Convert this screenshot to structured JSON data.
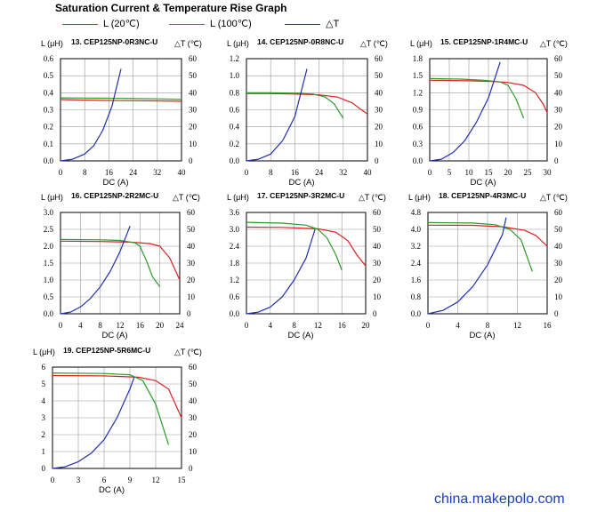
{
  "page_title": "Saturation Current & Temperature Rise  Graph",
  "legend": [
    {
      "label": "L (20℃)",
      "color": "#e02020"
    },
    {
      "label": "L (100℃)",
      "color": "#2a9a2a"
    },
    {
      "label": "△T",
      "color": "#2030b0"
    }
  ],
  "watermark": "china.makepolo.com",
  "chart_data": [
    {
      "type": "line",
      "title": "13. CEP125NP-0R3NC-U",
      "xlabel": "DC (A)",
      "ylabel_left": "L (μH)",
      "ylabel_right": "△T (℃)",
      "xlim": [
        0,
        40
      ],
      "xticks": [
        0,
        8,
        16,
        24,
        32,
        40
      ],
      "ylim_left": [
        0,
        0.6
      ],
      "yticks_left": [
        "0.0",
        "0.1",
        "0.2",
        "0.3",
        "0.4",
        "0.5",
        "0.6"
      ],
      "ylim_right": [
        0,
        60
      ],
      "yticks_right": [
        0,
        10,
        20,
        30,
        40,
        50,
        60
      ],
      "grid": true,
      "series": [
        {
          "name": "L (20℃)",
          "axis": "left",
          "points": [
            [
              0,
              0.36
            ],
            [
              8,
              0.357
            ],
            [
              16,
              0.355
            ],
            [
              24,
              0.353
            ],
            [
              32,
              0.352
            ],
            [
              40,
              0.35
            ]
          ]
        },
        {
          "name": "L (100℃)",
          "axis": "left",
          "points": [
            [
              0,
              0.37
            ],
            [
              8,
              0.369
            ],
            [
              16,
              0.368
            ],
            [
              24,
              0.366
            ],
            [
              32,
              0.364
            ],
            [
              40,
              0.361
            ]
          ]
        },
        {
          "name": "△T",
          "axis": "right",
          "points": [
            [
              0,
              0
            ],
            [
              4,
              1
            ],
            [
              8,
              4
            ],
            [
              11,
              9
            ],
            [
              14,
              18
            ],
            [
              17,
              32
            ],
            [
              20,
              54
            ]
          ]
        }
      ]
    },
    {
      "type": "line",
      "title": "14. CEP125NP-0R8NC-U",
      "xlabel": "DC (A)",
      "ylabel_left": "L (μH)",
      "ylabel_right": "△T (℃)",
      "xlim": [
        0,
        40
      ],
      "xticks": [
        0,
        8,
        16,
        24,
        32,
        40
      ],
      "ylim_left": [
        0,
        1.2
      ],
      "yticks_left": [
        "0.0",
        "0.2",
        "0.4",
        "0.6",
        "0.8",
        "1.0",
        "1.2"
      ],
      "ylim_right": [
        0,
        60
      ],
      "yticks_right": [
        0,
        10,
        20,
        30,
        40,
        50,
        60
      ],
      "grid": true,
      "series": [
        {
          "name": "L (20℃)",
          "axis": "left",
          "points": [
            [
              0,
              0.79
            ],
            [
              8,
              0.79
            ],
            [
              16,
              0.785
            ],
            [
              24,
              0.775
            ],
            [
              30,
              0.75
            ],
            [
              35,
              0.68
            ],
            [
              38,
              0.6
            ],
            [
              40,
              0.55
            ]
          ]
        },
        {
          "name": "L (100℃)",
          "axis": "left",
          "points": [
            [
              0,
              0.8
            ],
            [
              8,
              0.8
            ],
            [
              16,
              0.795
            ],
            [
              22,
              0.785
            ],
            [
              26,
              0.75
            ],
            [
              29,
              0.67
            ],
            [
              32,
              0.5
            ]
          ]
        },
        {
          "name": "△T",
          "axis": "right",
          "points": [
            [
              0,
              0
            ],
            [
              4,
              1
            ],
            [
              8,
              4
            ],
            [
              12,
              12
            ],
            [
              16,
              26
            ],
            [
              20,
              54
            ]
          ]
        }
      ]
    },
    {
      "type": "line",
      "title": "15. CEP125NP-1R4MC-U",
      "xlabel": "DC (A)",
      "ylabel_left": "L (μH)",
      "ylabel_right": "△T (℃)",
      "xlim": [
        0,
        30
      ],
      "xticks": [
        0,
        5,
        10,
        15,
        20,
        25,
        30
      ],
      "ylim_left": [
        0,
        1.8
      ],
      "yticks_left": [
        "0.0",
        "0.3",
        "0.6",
        "0.9",
        "1.2",
        "1.5",
        "1.8"
      ],
      "ylim_right": [
        0,
        60
      ],
      "yticks_right": [
        0,
        10,
        20,
        30,
        40,
        50,
        60
      ],
      "grid": true,
      "series": [
        {
          "name": "L (20℃)",
          "axis": "left",
          "points": [
            [
              0,
              1.42
            ],
            [
              10,
              1.41
            ],
            [
              16,
              1.4
            ],
            [
              20,
              1.38
            ],
            [
              24,
              1.33
            ],
            [
              27,
              1.2
            ],
            [
              29,
              1.0
            ],
            [
              30,
              0.85
            ]
          ]
        },
        {
          "name": "L (100℃)",
          "axis": "left",
          "points": [
            [
              0,
              1.45
            ],
            [
              8,
              1.44
            ],
            [
              14,
              1.42
            ],
            [
              18,
              1.39
            ],
            [
              20,
              1.33
            ],
            [
              22,
              1.1
            ],
            [
              24,
              0.75
            ]
          ]
        },
        {
          "name": "△T",
          "axis": "right",
          "points": [
            [
              0,
              0
            ],
            [
              3,
              1
            ],
            [
              6,
              5
            ],
            [
              9,
              12
            ],
            [
              12,
              23
            ],
            [
              15,
              37
            ],
            [
              18,
              58
            ]
          ]
        }
      ]
    },
    {
      "type": "line",
      "title": "16. CEP125NP-2R2MC-U",
      "xlabel": "DC (A)",
      "ylabel_left": "L (μH)",
      "ylabel_right": "△T (℃)",
      "xlim": [
        0,
        24
      ],
      "xticks": [
        0,
        4,
        8,
        12,
        16,
        20,
        24
      ],
      "ylim_left": [
        0,
        3.0
      ],
      "yticks_left": [
        "0.0",
        "0.5",
        "1.0",
        "1.5",
        "2.0",
        "2.5",
        "3.0"
      ],
      "ylim_right": [
        0,
        60
      ],
      "yticks_right": [
        0,
        10,
        20,
        30,
        40,
        50,
        60
      ],
      "grid": true,
      "series": [
        {
          "name": "L (20℃)",
          "axis": "left",
          "points": [
            [
              0,
              2.15
            ],
            [
              8,
              2.14
            ],
            [
              14,
              2.12
            ],
            [
              18,
              2.08
            ],
            [
              20,
              2.0
            ],
            [
              22,
              1.65
            ],
            [
              24,
              1.0
            ]
          ]
        },
        {
          "name": "L (100℃)",
          "axis": "left",
          "points": [
            [
              0,
              2.2
            ],
            [
              8,
              2.19
            ],
            [
              12,
              2.17
            ],
            [
              15,
              2.1
            ],
            [
              16,
              2.0
            ],
            [
              17.5,
              1.5
            ],
            [
              18.5,
              1.1
            ],
            [
              20,
              0.8
            ]
          ]
        },
        {
          "name": "△T",
          "axis": "right",
          "points": [
            [
              0,
              0
            ],
            [
              2,
              1
            ],
            [
              4,
              4
            ],
            [
              6,
              9
            ],
            [
              8,
              16
            ],
            [
              10,
              25
            ],
            [
              12,
              37
            ],
            [
              14,
              52
            ]
          ]
        }
      ]
    },
    {
      "type": "line",
      "title": "17. CEP125NP-3R2MC-U",
      "xlabel": "DC (A)",
      "ylabel_left": "L (μH)",
      "ylabel_right": "△T (℃)",
      "xlim": [
        0,
        20
      ],
      "xticks": [
        0,
        4,
        8,
        12,
        16,
        20
      ],
      "ylim_left": [
        0,
        3.6
      ],
      "yticks_left": [
        "0.0",
        "0.6",
        "1.2",
        "1.8",
        "2.4",
        "3.0",
        "3.6"
      ],
      "ylim_right": [
        0,
        60
      ],
      "yticks_right": [
        0,
        10,
        20,
        30,
        40,
        50,
        60
      ],
      "grid": true,
      "series": [
        {
          "name": "L (20℃)",
          "axis": "left",
          "points": [
            [
              0,
              3.08
            ],
            [
              6,
              3.07
            ],
            [
              12,
              3.02
            ],
            [
              15,
              2.9
            ],
            [
              17,
              2.6
            ],
            [
              18.5,
              2.1
            ],
            [
              20,
              1.7
            ]
          ]
        },
        {
          "name": "L (100℃)",
          "axis": "left",
          "points": [
            [
              0,
              3.25
            ],
            [
              6,
              3.22
            ],
            [
              10,
              3.15
            ],
            [
              12,
              3.0
            ],
            [
              13.5,
              2.7
            ],
            [
              15,
              2.1
            ],
            [
              16,
              1.55
            ]
          ]
        },
        {
          "name": "△T",
          "axis": "right",
          "points": [
            [
              0,
              0
            ],
            [
              2,
              1
            ],
            [
              4,
              4
            ],
            [
              6,
              10
            ],
            [
              8,
              20
            ],
            [
              10,
              33
            ],
            [
              11.5,
              50
            ]
          ]
        }
      ]
    },
    {
      "type": "line",
      "title": "18. CEP125NP-4R3MC-U",
      "xlabel": "DC (A)",
      "ylabel_left": "L (μH)",
      "ylabel_right": "△T (℃)",
      "xlim": [
        0,
        16
      ],
      "xticks": [
        0,
        4,
        8,
        12,
        16
      ],
      "ylim_left": [
        0,
        4.8
      ],
      "yticks_left": [
        "0.0",
        "0.8",
        "1.6",
        "2.4",
        "3.2",
        "4.0",
        "4.8"
      ],
      "ylim_right": [
        0,
        60
      ],
      "yticks_right": [
        0,
        10,
        20,
        30,
        40,
        50,
        60
      ],
      "grid": true,
      "series": [
        {
          "name": "L (20℃)",
          "axis": "left",
          "points": [
            [
              0,
              4.2
            ],
            [
              6,
              4.19
            ],
            [
              10,
              4.12
            ],
            [
              13,
              3.95
            ],
            [
              14.5,
              3.7
            ],
            [
              16,
              3.2
            ]
          ]
        },
        {
          "name": "L (100℃)",
          "axis": "left",
          "points": [
            [
              0,
              4.32
            ],
            [
              6,
              4.3
            ],
            [
              9,
              4.22
            ],
            [
              11,
              4.0
            ],
            [
              12.5,
              3.5
            ],
            [
              14,
              2.0
            ]
          ]
        },
        {
          "name": "△T",
          "axis": "right",
          "points": [
            [
              0,
              0
            ],
            [
              2,
              2
            ],
            [
              4,
              7
            ],
            [
              6,
              16
            ],
            [
              8,
              29
            ],
            [
              10,
              47
            ],
            [
              10.5,
              57
            ]
          ]
        }
      ]
    },
    {
      "type": "line",
      "title": "19. CEP125NP-5R6MC-U",
      "xlabel": "DC (A)",
      "ylabel_left": "L (μH)",
      "ylabel_right": "△T (℃)",
      "xlim": [
        0,
        15
      ],
      "xticks": [
        0,
        3,
        6,
        9,
        12,
        15
      ],
      "ylim_left": [
        0,
        6
      ],
      "yticks_left": [
        "0",
        "1",
        "2",
        "3",
        "4",
        "5",
        "6"
      ],
      "ylim_right": [
        0,
        60
      ],
      "yticks_right": [
        0,
        10,
        20,
        30,
        40,
        50,
        60
      ],
      "grid": true,
      "series": [
        {
          "name": "L (20℃)",
          "axis": "left",
          "points": [
            [
              0,
              5.5
            ],
            [
              6,
              5.48
            ],
            [
              10,
              5.4
            ],
            [
              12,
              5.2
            ],
            [
              13.5,
              4.7
            ],
            [
              15,
              3.0
            ]
          ]
        },
        {
          "name": "L (100℃)",
          "axis": "left",
          "points": [
            [
              0,
              5.65
            ],
            [
              6,
              5.62
            ],
            [
              9,
              5.55
            ],
            [
              10.5,
              5.2
            ],
            [
              12,
              3.8
            ],
            [
              13.5,
              1.4
            ]
          ]
        },
        {
          "name": "△T",
          "axis": "right",
          "points": [
            [
              0,
              0
            ],
            [
              1.5,
              1
            ],
            [
              3,
              4
            ],
            [
              4.5,
              9
            ],
            [
              6,
              17
            ],
            [
              7.5,
              30
            ],
            [
              9,
              47
            ],
            [
              9.5,
              54
            ]
          ]
        }
      ]
    }
  ]
}
